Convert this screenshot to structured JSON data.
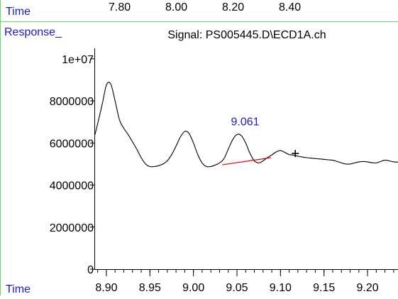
{
  "top_strip": {
    "time_label": "Time",
    "tick_labels": [
      "7.80",
      "8.00",
      "8.20",
      "8.40"
    ]
  },
  "labels": {
    "response_label": "Response_",
    "bottom_time_label": "Time"
  },
  "colors": {
    "frame_green": "#66dd66",
    "label_blue": "#1a1acc",
    "baseline_red": "#e00000",
    "trace_black": "#000000"
  },
  "chart_data": {
    "type": "line",
    "title": "Signal: PS005445.D\\ECD1A.ch",
    "xlabel": "Time",
    "ylabel": "Response_",
    "xlim": [
      8.887,
      9.235
    ],
    "ylim": [
      0,
      10500000
    ],
    "x_ticks": [
      "8.90",
      "8.95",
      "9.00",
      "9.05",
      "9.10",
      "9.15",
      "9.20"
    ],
    "y_ticks": [
      "0",
      "2000000",
      "4000000",
      "6000000",
      "8000000",
      "1e+07"
    ],
    "grid": false,
    "series": [
      {
        "x": [
          8.887,
          8.895,
          8.9,
          8.905,
          8.91,
          8.915,
          8.92,
          8.925,
          8.93,
          8.935,
          8.94,
          8.945,
          8.95,
          8.955,
          8.96,
          8.965,
          8.97,
          8.975,
          8.98,
          8.985,
          8.99,
          8.995,
          9.0,
          9.005,
          9.01,
          9.015,
          9.02,
          9.025,
          9.03,
          9.035,
          9.04,
          9.045,
          9.05,
          9.055,
          9.06,
          9.065,
          9.07,
          9.075,
          9.08,
          9.085,
          9.09,
          9.095,
          9.1,
          9.105,
          9.11,
          9.115,
          9.12,
          9.125,
          9.13,
          9.135,
          9.14,
          9.145,
          9.15,
          9.155,
          9.16,
          9.165,
          9.17,
          9.175,
          9.18,
          9.185,
          9.19,
          9.195,
          9.2,
          9.205,
          9.21,
          9.215,
          9.22,
          9.225,
          9.23,
          9.235
        ],
        "y": [
          6400000,
          7800000,
          8750000,
          8800000,
          8000000,
          7100000,
          6700000,
          6400000,
          6050000,
          5700000,
          5300000,
          5000000,
          4880000,
          4880000,
          4920000,
          5000000,
          5150000,
          5450000,
          5850000,
          6280000,
          6550000,
          6450000,
          6000000,
          5450000,
          5050000,
          4880000,
          4880000,
          4950000,
          5050000,
          5250000,
          5700000,
          6150000,
          6400000,
          6350000,
          6000000,
          5500000,
          5150000,
          5050000,
          5150000,
          5300000,
          5430000,
          5570000,
          5640000,
          5550000,
          5450000,
          5420000,
          5370000,
          5330000,
          5300000,
          5280000,
          5260000,
          5240000,
          5220000,
          5200000,
          5180000,
          5120000,
          5050000,
          5000000,
          5000000,
          5050000,
          5100000,
          5120000,
          5100000,
          5060000,
          5050000,
          5120000,
          5180000,
          5150000,
          5100000,
          5090000
        ]
      }
    ],
    "baseline": {
      "x": [
        9.033,
        9.089
      ],
      "y": [
        4960000,
        5300000
      ]
    },
    "annotations": [
      {
        "text": "9.061",
        "x": 9.061,
        "y": 6400000
      }
    ],
    "marker": {
      "symbol": "+",
      "x": 9.117,
      "y": 5500000
    }
  }
}
